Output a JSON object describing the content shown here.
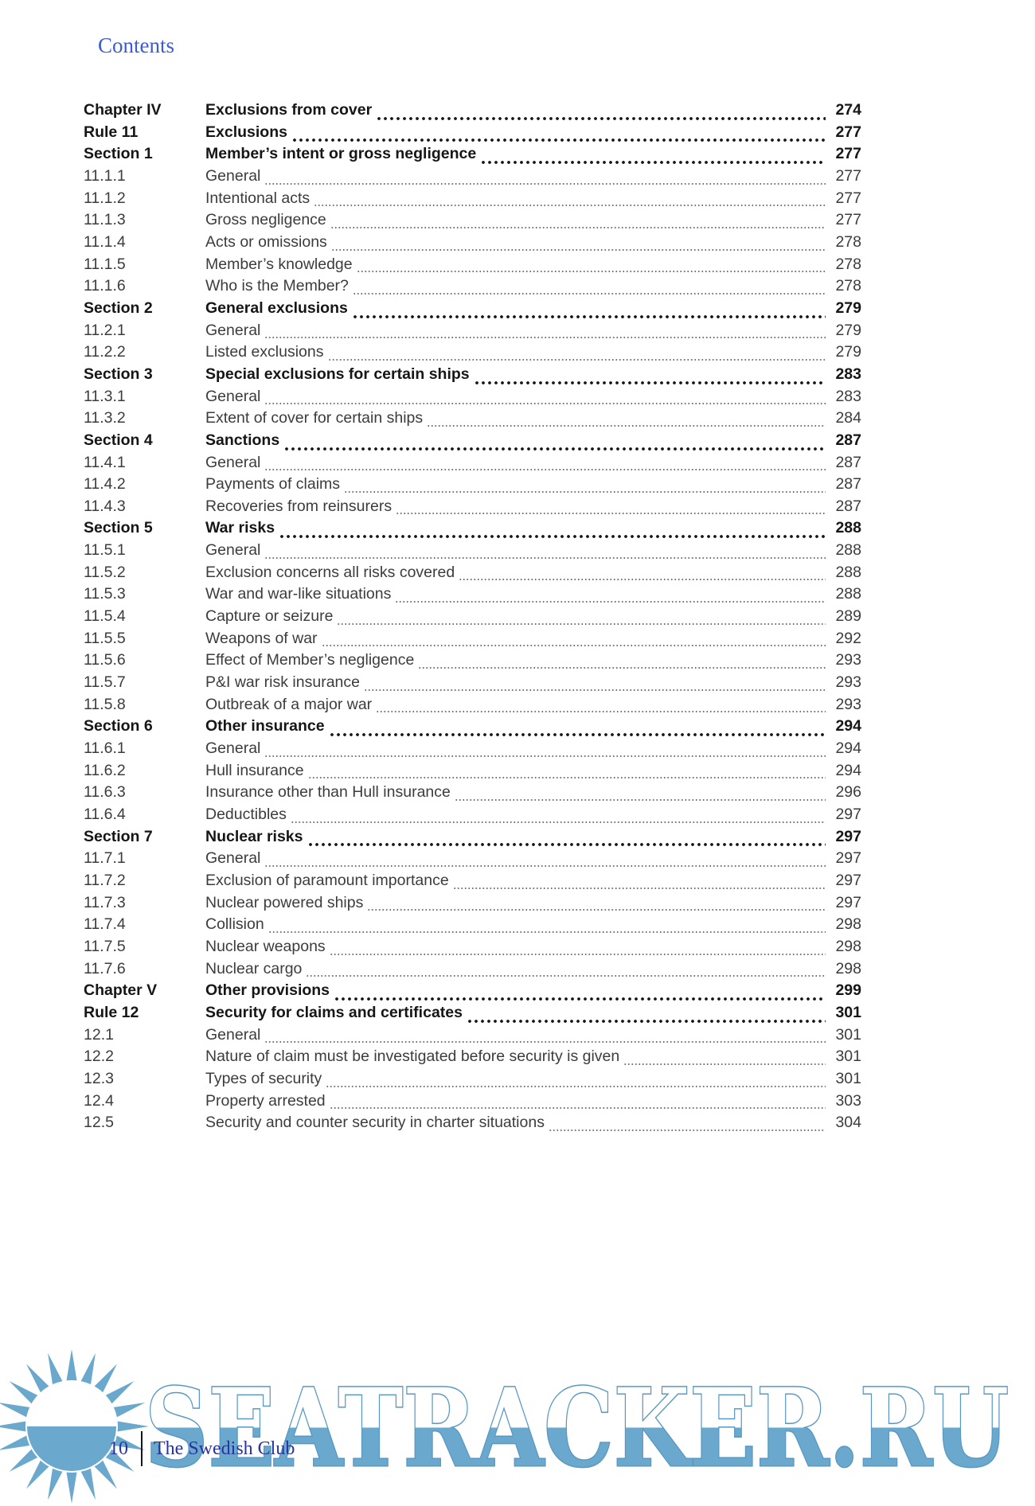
{
  "page": {
    "header": "Contents",
    "footer": {
      "page_number": "10",
      "publisher": "The Swedish Club"
    },
    "watermark": {
      "text": "SEATRACKER.RU",
      "icon": "sun-icon"
    },
    "colors": {
      "header_blue": "#3d5bd4",
      "footer_navy": "#28339b",
      "watermark_blue": "#6ba8cd",
      "watermark_outline": "#5898c2",
      "toc_bold_text": "#161616",
      "toc_light_text": "#3c3c3c"
    }
  },
  "toc": {
    "rows": [
      {
        "label": "Chapter IV",
        "title": "Exclusions from cover",
        "page": "274",
        "emphasis": "bold"
      },
      {
        "label": "Rule 11",
        "title": "Exclusions",
        "page": "277",
        "emphasis": "bold"
      },
      {
        "label": "Section 1",
        "title": "Member’s intent or gross negligence",
        "page": "277",
        "emphasis": "bold"
      },
      {
        "label": "11.1.1",
        "title": "General",
        "page": "277",
        "emphasis": "light"
      },
      {
        "label": "11.1.2",
        "title": "Intentional acts",
        "page": "277",
        "emphasis": "light"
      },
      {
        "label": "11.1.3",
        "title": "Gross negligence",
        "page": "277",
        "emphasis": "light"
      },
      {
        "label": "11.1.4",
        "title": "Acts or omissions",
        "page": "278",
        "emphasis": "light"
      },
      {
        "label": "11.1.5",
        "title": "Member’s knowledge",
        "page": "278",
        "emphasis": "light"
      },
      {
        "label": "11.1.6",
        "title": "Who is the Member?",
        "page": "278",
        "emphasis": "light"
      },
      {
        "label": "Section 2",
        "title": "General exclusions",
        "page": "279",
        "emphasis": "bold"
      },
      {
        "label": "11.2.1",
        "title": "General",
        "page": "279",
        "emphasis": "light"
      },
      {
        "label": "11.2.2",
        "title": "Listed exclusions",
        "page": "279",
        "emphasis": "light"
      },
      {
        "label": "Section 3",
        "title": "Special exclusions for certain ships",
        "page": "283",
        "emphasis": "bold"
      },
      {
        "label": "11.3.1",
        "title": "General",
        "page": "283",
        "emphasis": "light"
      },
      {
        "label": "11.3.2",
        "title": "Extent of cover for certain ships",
        "page": "284",
        "emphasis": "light"
      },
      {
        "label": "Section 4",
        "title": "Sanctions",
        "page": "287",
        "emphasis": "bold"
      },
      {
        "label": "11.4.1",
        "title": "General",
        "page": "287",
        "emphasis": "light"
      },
      {
        "label": "11.4.2",
        "title": "Payments of claims",
        "page": "287",
        "emphasis": "light"
      },
      {
        "label": "11.4.3",
        "title": "Recoveries from reinsurers",
        "page": "287",
        "emphasis": "light"
      },
      {
        "label": "Section 5",
        "title": "War risks",
        "page": "288",
        "emphasis": "bold"
      },
      {
        "label": "11.5.1",
        "title": "General",
        "page": "288",
        "emphasis": "light"
      },
      {
        "label": "11.5.2",
        "title": "Exclusion concerns all risks covered",
        "page": "288",
        "emphasis": "light"
      },
      {
        "label": "11.5.3",
        "title": "War and war-like situations",
        "page": "288",
        "emphasis": "light"
      },
      {
        "label": "11.5.4",
        "title": "Capture or seizure",
        "page": "289",
        "emphasis": "light"
      },
      {
        "label": "11.5.5",
        "title": "Weapons of war",
        "page": "292",
        "emphasis": "light"
      },
      {
        "label": "11.5.6",
        "title": "Effect of Member’s negligence",
        "page": "293",
        "emphasis": "light"
      },
      {
        "label": "11.5.7",
        "title": "P&I war risk insurance",
        "page": "293",
        "emphasis": "light"
      },
      {
        "label": "11.5.8",
        "title": "Outbreak of a major war",
        "page": "293",
        "emphasis": "light"
      },
      {
        "label": "Section 6",
        "title": "Other insurance",
        "page": "294",
        "emphasis": "bold"
      },
      {
        "label": "11.6.1",
        "title": "General",
        "page": "294",
        "emphasis": "light"
      },
      {
        "label": "11.6.2",
        "title": "Hull insurance",
        "page": "294",
        "emphasis": "light"
      },
      {
        "label": "11.6.3",
        "title": "Insurance other than Hull insurance",
        "page": "296",
        "emphasis": "light"
      },
      {
        "label": "11.6.4",
        "title": "Deductibles",
        "page": "297",
        "emphasis": "light"
      },
      {
        "label": "Section 7",
        "title": "Nuclear risks",
        "page": "297",
        "emphasis": "bold"
      },
      {
        "label": "11.7.1",
        "title": "General",
        "page": "297",
        "emphasis": "light"
      },
      {
        "label": "11.7.2",
        "title": "Exclusion of paramount importance",
        "page": "297",
        "emphasis": "light"
      },
      {
        "label": "11.7.3",
        "title": "Nuclear powered ships",
        "page": "297",
        "emphasis": "light"
      },
      {
        "label": "11.7.4",
        "title": "Collision",
        "page": "298",
        "emphasis": "light"
      },
      {
        "label": "11.7.5",
        "title": "Nuclear weapons",
        "page": "298",
        "emphasis": "light"
      },
      {
        "label": "11.7.6",
        "title": "Nuclear cargo",
        "page": "298",
        "emphasis": "light"
      },
      {
        "label": "Chapter V",
        "title": "Other provisions",
        "page": "299",
        "emphasis": "bold"
      },
      {
        "label": "Rule 12",
        "title": "Security for claims and certificates",
        "page": "301",
        "emphasis": "bold"
      },
      {
        "label": "12.1",
        "title": "General",
        "page": "301",
        "emphasis": "light"
      },
      {
        "label": "12.2",
        "title": "Nature of claim must be investigated before security is given",
        "page": "301",
        "emphasis": "light"
      },
      {
        "label": "12.3",
        "title": "Types of security",
        "page": "301",
        "emphasis": "light"
      },
      {
        "label": "12.4",
        "title": "Property arrested",
        "page": "303",
        "emphasis": "light"
      },
      {
        "label": "12.5",
        "title": "Security and counter security in charter situations",
        "page": "304",
        "emphasis": "light"
      }
    ]
  }
}
